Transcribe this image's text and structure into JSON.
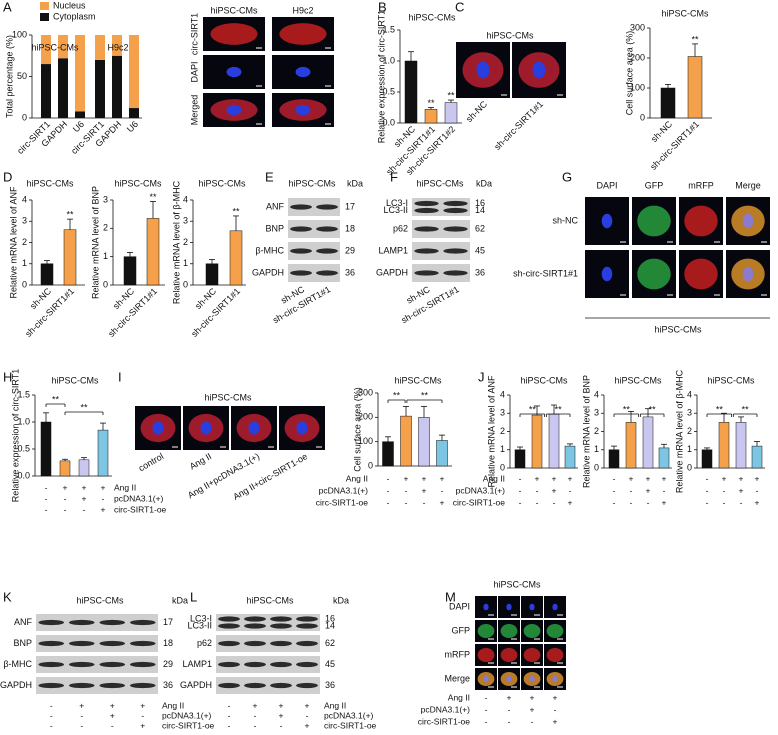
{
  "chart_data": [
    {
      "type": "stacked-bar",
      "ylabel": "Total percentage (%)",
      "groups": [
        "hiPSC-CMs",
        "H9c2"
      ],
      "categories": [
        "circ-SIRT1",
        "GAPDH",
        "U6",
        "circ-SIRT1",
        "GAPDH",
        "U6"
      ],
      "series": [
        {
          "name": "Nucleus",
          "color": "#f5a04a",
          "values": [
            35,
            28,
            92,
            30,
            25,
            88
          ]
        },
        {
          "name": "Cytoplasm",
          "color": "#111111",
          "values": [
            65,
            72,
            8,
            70,
            75,
            12
          ]
        }
      ],
      "ylim": [
        0,
        100
      ],
      "yticks": [
        0,
        50,
        100
      ]
    },
    {
      "type": "bar",
      "title": "hiPSC-CMs",
      "ylabel": "Relative expression of circ-SIRT1",
      "categories": [
        "sh-NC",
        "sh-circ-SIRT1#1",
        "sh-circ-SIRT1#2"
      ],
      "values": [
        1.0,
        0.22,
        0.33
      ],
      "errors": [
        0.15,
        0.03,
        0.04
      ],
      "colors": [
        "#111111",
        "#f5a04a",
        "#c9c6ef"
      ],
      "significance": [
        null,
        "**",
        "**"
      ],
      "ylim": [
        0,
        1.5
      ],
      "yticks": [
        {
          "value": 0,
          "label": "0.0"
        },
        0.5,
        {
          "value": 1,
          "label": "1.0"
        },
        1.5
      ]
    },
    {
      "type": "bar",
      "title": "hiPSC-CMs",
      "ylabel": "Cell surface area (%)",
      "categories": [
        "sh-NC",
        "sh-circ-SIRT1#1"
      ],
      "values": [
        100,
        205
      ],
      "errors": [
        12,
        42
      ],
      "colors": [
        "#111111",
        "#f5a04a"
      ],
      "significance": [
        null,
        "**"
      ],
      "ylim": [
        0,
        300
      ],
      "yticks": [
        0,
        100,
        200,
        300
      ]
    },
    {
      "type": "bar",
      "title": "hiPSC-CMs",
      "ylabel": "Relative mRNA level of ANF",
      "categories": [
        "sh-NC",
        "sh-circ-SIRT1#1"
      ],
      "values": [
        1.0,
        2.6
      ],
      "errors": [
        0.15,
        0.5
      ],
      "colors": [
        "#111111",
        "#f5a04a"
      ],
      "significance": [
        null,
        "**"
      ],
      "ylim": [
        0,
        4
      ],
      "yticks": [
        0,
        1,
        2,
        3,
        4
      ]
    },
    {
      "type": "bar",
      "title": "hiPSC-CMs",
      "ylabel": "Relative mRNA level of BNP",
      "categories": [
        "sh-NC",
        "sh-circ-SIRT1#1"
      ],
      "values": [
        1.0,
        2.35
      ],
      "errors": [
        0.15,
        0.6
      ],
      "colors": [
        "#111111",
        "#f5a04a"
      ],
      "significance": [
        null,
        "**"
      ],
      "ylim": [
        0,
        3
      ],
      "yticks": [
        0,
        1,
        2,
        3
      ]
    },
    {
      "type": "bar",
      "title": "hiPSC-CMs",
      "ylabel": "Relative mRNA level of β-MHC",
      "categories": [
        "sh-NC",
        "sh-circ-SIRT1#1"
      ],
      "values": [
        1.0,
        2.55
      ],
      "errors": [
        0.2,
        0.7
      ],
      "colors": [
        "#111111",
        "#f5a04a"
      ],
      "significance": [
        null,
        "**"
      ],
      "ylim": [
        0,
        4
      ],
      "yticks": [
        0,
        1,
        2,
        3,
        4
      ]
    },
    {
      "type": "bar",
      "title": "hiPSC-CMs",
      "ylabel": "Relative expression of circ-SIRT1",
      "values": [
        1.0,
        0.28,
        0.3,
        0.85
      ],
      "errors": [
        0.17,
        0.03,
        0.04,
        0.13
      ],
      "colors": [
        "#111111",
        "#f5a04a",
        "#c9c6ef",
        "#7cc6e3"
      ],
      "comparisons": [
        "**",
        "**"
      ],
      "ylim": [
        0,
        1.5
      ],
      "yticks": [
        {
          "value": 0,
          "label": "0.0"
        },
        0.5,
        {
          "value": 1,
          "label": "1.0"
        },
        1.5
      ],
      "conditions": [
        {
          "name": "Ang II",
          "signs": [
            "-",
            "+",
            "+",
            "+"
          ]
        },
        {
          "name": "pcDNA3.1(+)",
          "signs": [
            "-",
            "-",
            "+",
            "-"
          ]
        },
        {
          "name": "circ-SIRT1-oe",
          "signs": [
            "-",
            "-",
            "-",
            "+"
          ]
        }
      ]
    },
    {
      "type": "bar",
      "title": "hiPSC-CMs",
      "ylabel": "Cell surface area (%)",
      "values": [
        100,
        205,
        200,
        105
      ],
      "errors": [
        20,
        40,
        45,
        22
      ],
      "colors": [
        "#111111",
        "#f5a04a",
        "#c9c6ef",
        "#7cc6e3"
      ],
      "comparisons": [
        "**",
        "**"
      ],
      "ylim": [
        0,
        300
      ],
      "yticks": [
        0,
        100,
        200,
        300
      ],
      "conditions": [
        {
          "name": "Ang II",
          "signs": [
            "-",
            "+",
            "+",
            "+"
          ]
        },
        {
          "name": "pcDNA3.1(+)",
          "signs": [
            "-",
            "-",
            "+",
            "-"
          ]
        },
        {
          "name": "circ-SIRT1-oe",
          "signs": [
            "-",
            "-",
            "-",
            "+"
          ]
        }
      ]
    },
    {
      "type": "bar",
      "title": "hiPSC-CMs",
      "ylabel": "Relative mRNA level of ANF",
      "values": [
        1.0,
        2.9,
        2.95,
        1.2
      ],
      "errors": [
        0.15,
        0.5,
        0.5,
        0.12
      ],
      "colors": [
        "#111111",
        "#f5a04a",
        "#c9c6ef",
        "#7cc6e3"
      ],
      "comparisons": [
        "**",
        "**"
      ],
      "ylim": [
        0,
        4
      ],
      "yticks": [
        0,
        1,
        2,
        3,
        4
      ],
      "conditions": [
        {
          "name": "Ang II",
          "signs": [
            "-",
            "+",
            "+",
            "+"
          ]
        },
        {
          "name": "pcDNA3.1(+)",
          "signs": [
            "-",
            "-",
            "+",
            "-"
          ]
        },
        {
          "name": "circ-SIRT1-oe",
          "signs": [
            "-",
            "-",
            "-",
            "+"
          ]
        }
      ]
    },
    {
      "type": "bar",
      "title": "hiPSC-CMs",
      "ylabel": "Relative mRNA level of BNP",
      "values": [
        1.0,
        2.5,
        2.8,
        1.1
      ],
      "errors": [
        0.2,
        0.6,
        0.45,
        0.2
      ],
      "colors": [
        "#111111",
        "#f5a04a",
        "#c9c6ef",
        "#7cc6e3"
      ],
      "comparisons": [
        "**",
        "**"
      ],
      "ylim": [
        0,
        4
      ],
      "yticks": [
        0,
        1,
        2,
        3,
        4
      ],
      "conditions": [
        {
          "signs": [
            "-",
            "+",
            "+",
            "+"
          ]
        },
        {
          "signs": [
            "-",
            "-",
            "+",
            "-"
          ]
        },
        {
          "signs": [
            "-",
            "-",
            "-",
            "+"
          ]
        }
      ]
    },
    {
      "type": "bar",
      "title": "hiPSC-CMs",
      "ylabel": "Relative mRNA level of β-MHC",
      "values": [
        1.0,
        2.5,
        2.5,
        1.2
      ],
      "errors": [
        0.1,
        0.5,
        0.3,
        0.25
      ],
      "colors": [
        "#111111",
        "#f5a04a",
        "#c9c6ef",
        "#7cc6e3"
      ],
      "comparisons": [
        "**",
        "**"
      ],
      "ylim": [
        0,
        4
      ],
      "yticks": [
        0,
        1,
        2,
        3,
        4
      ],
      "conditions": [
        {
          "signs": [
            "-",
            "+",
            "+",
            "+"
          ]
        },
        {
          "signs": [
            "-",
            "-",
            "+",
            "-"
          ]
        },
        {
          "signs": [
            "-",
            "-",
            "-",
            "+"
          ]
        }
      ]
    }
  ],
  "figure": {
    "panel_letters": [
      "A",
      "B",
      "C",
      "D",
      "E",
      "F",
      "G",
      "H",
      "I",
      "J",
      "K",
      "L",
      "M"
    ],
    "a_images": {
      "columns": [
        "hiPSC-CMs",
        "H9c2"
      ],
      "rows": [
        "circ-SIRT1",
        "DAPI",
        "Merged"
      ]
    },
    "c_images": {
      "title": "hiPSC-CMs",
      "labels": [
        "sh-NC",
        "sh-circ-SIRT1#1"
      ]
    },
    "e_blot": {
      "title": "hiPSC-CMs",
      "unit": "kDa",
      "lanes": [
        "sh-NC",
        "sh-circ-SIRT1#1"
      ],
      "bands": [
        {
          "names": [
            "ANF"
          ],
          "kda": [
            17
          ]
        },
        {
          "names": [
            "BNP"
          ],
          "kda": [
            18
          ]
        },
        {
          "names": [
            "β-MHC"
          ],
          "kda": [
            29
          ]
        },
        {
          "names": [
            "GAPDH"
          ],
          "kda": [
            36
          ]
        }
      ]
    },
    "f_blot": {
      "title": "hiPSC-CMs",
      "unit": "kDa",
      "lanes": [
        "sh-NC",
        "sh-circ-SIRT1#1"
      ],
      "bands": [
        {
          "names": [
            "LC3-I",
            "LC3-II"
          ],
          "kda": [
            16,
            14
          ]
        },
        {
          "names": [
            "p62"
          ],
          "kda": [
            62
          ]
        },
        {
          "names": [
            "LAMP1"
          ],
          "kda": [
            45
          ]
        },
        {
          "names": [
            "GAPDH"
          ],
          "kda": [
            36
          ]
        }
      ]
    },
    "g_images": {
      "columns": [
        "DAPI",
        "GFP",
        "mRFP",
        "Merge"
      ],
      "rows": [
        "sh-NC",
        "sh-circ-SIRT1#1"
      ],
      "footer": "hiPSC-CMs"
    },
    "i_images": {
      "title": "hiPSC-CMs",
      "labels": [
        "control",
        "Ang II",
        "Ang II+pcDNA3.1(+)",
        "Ang II+circ-SIRT1-oe"
      ]
    },
    "k_blot": {
      "title": "hiPSC-CMs",
      "unit": "kDa",
      "bands": [
        {
          "names": [
            "ANF"
          ],
          "kda": [
            17
          ]
        },
        {
          "names": [
            "BNP"
          ],
          "kda": [
            18
          ]
        },
        {
          "names": [
            "β-MHC"
          ],
          "kda": [
            29
          ]
        },
        {
          "names": [
            "GAPDH"
          ],
          "kda": [
            36
          ]
        }
      ],
      "conditions": [
        {
          "name": "Ang II",
          "signs": [
            "-",
            "+",
            "+",
            "+"
          ]
        },
        {
          "name": "pcDNA3.1(+)",
          "signs": [
            "-",
            "-",
            "+",
            "-"
          ]
        },
        {
          "name": "circ-SIRT1-oe",
          "signs": [
            "-",
            "-",
            "-",
            "+"
          ]
        }
      ]
    },
    "l_blot": {
      "title": "hiPSC-CMs",
      "unit": "kDa",
      "bands": [
        {
          "names": [
            "LC3-I",
            "LC3-II"
          ],
          "kda": [
            16,
            14
          ]
        },
        {
          "names": [
            "p62"
          ],
          "kda": [
            62
          ]
        },
        {
          "names": [
            "LAMP1"
          ],
          "kda": [
            45
          ]
        },
        {
          "names": [
            "GAPDH"
          ],
          "kda": [
            36
          ]
        }
      ],
      "conditions": [
        {
          "name": "Ang II",
          "signs": [
            "-",
            "+",
            "+",
            "+"
          ]
        },
        {
          "name": "pcDNA3.1(+)",
          "signs": [
            "-",
            "-",
            "+",
            "-"
          ]
        },
        {
          "name": "circ-SIRT1-oe",
          "signs": [
            "-",
            "-",
            "-",
            "+"
          ]
        }
      ]
    },
    "m_images": {
      "title": "hiPSC-CMs",
      "rows": [
        "DAPI",
        "GFP",
        "mRFP",
        "Merge"
      ],
      "conditions": [
        {
          "name": "Ang II",
          "signs": [
            "-",
            "+",
            "+",
            "+"
          ]
        },
        {
          "name": "pcDNA3.1(+)",
          "signs": [
            "-",
            "-",
            "+",
            "-"
          ]
        },
        {
          "name": "circ-SIRT1-oe",
          "signs": [
            "-",
            "-",
            "-",
            "+"
          ]
        }
      ]
    }
  }
}
